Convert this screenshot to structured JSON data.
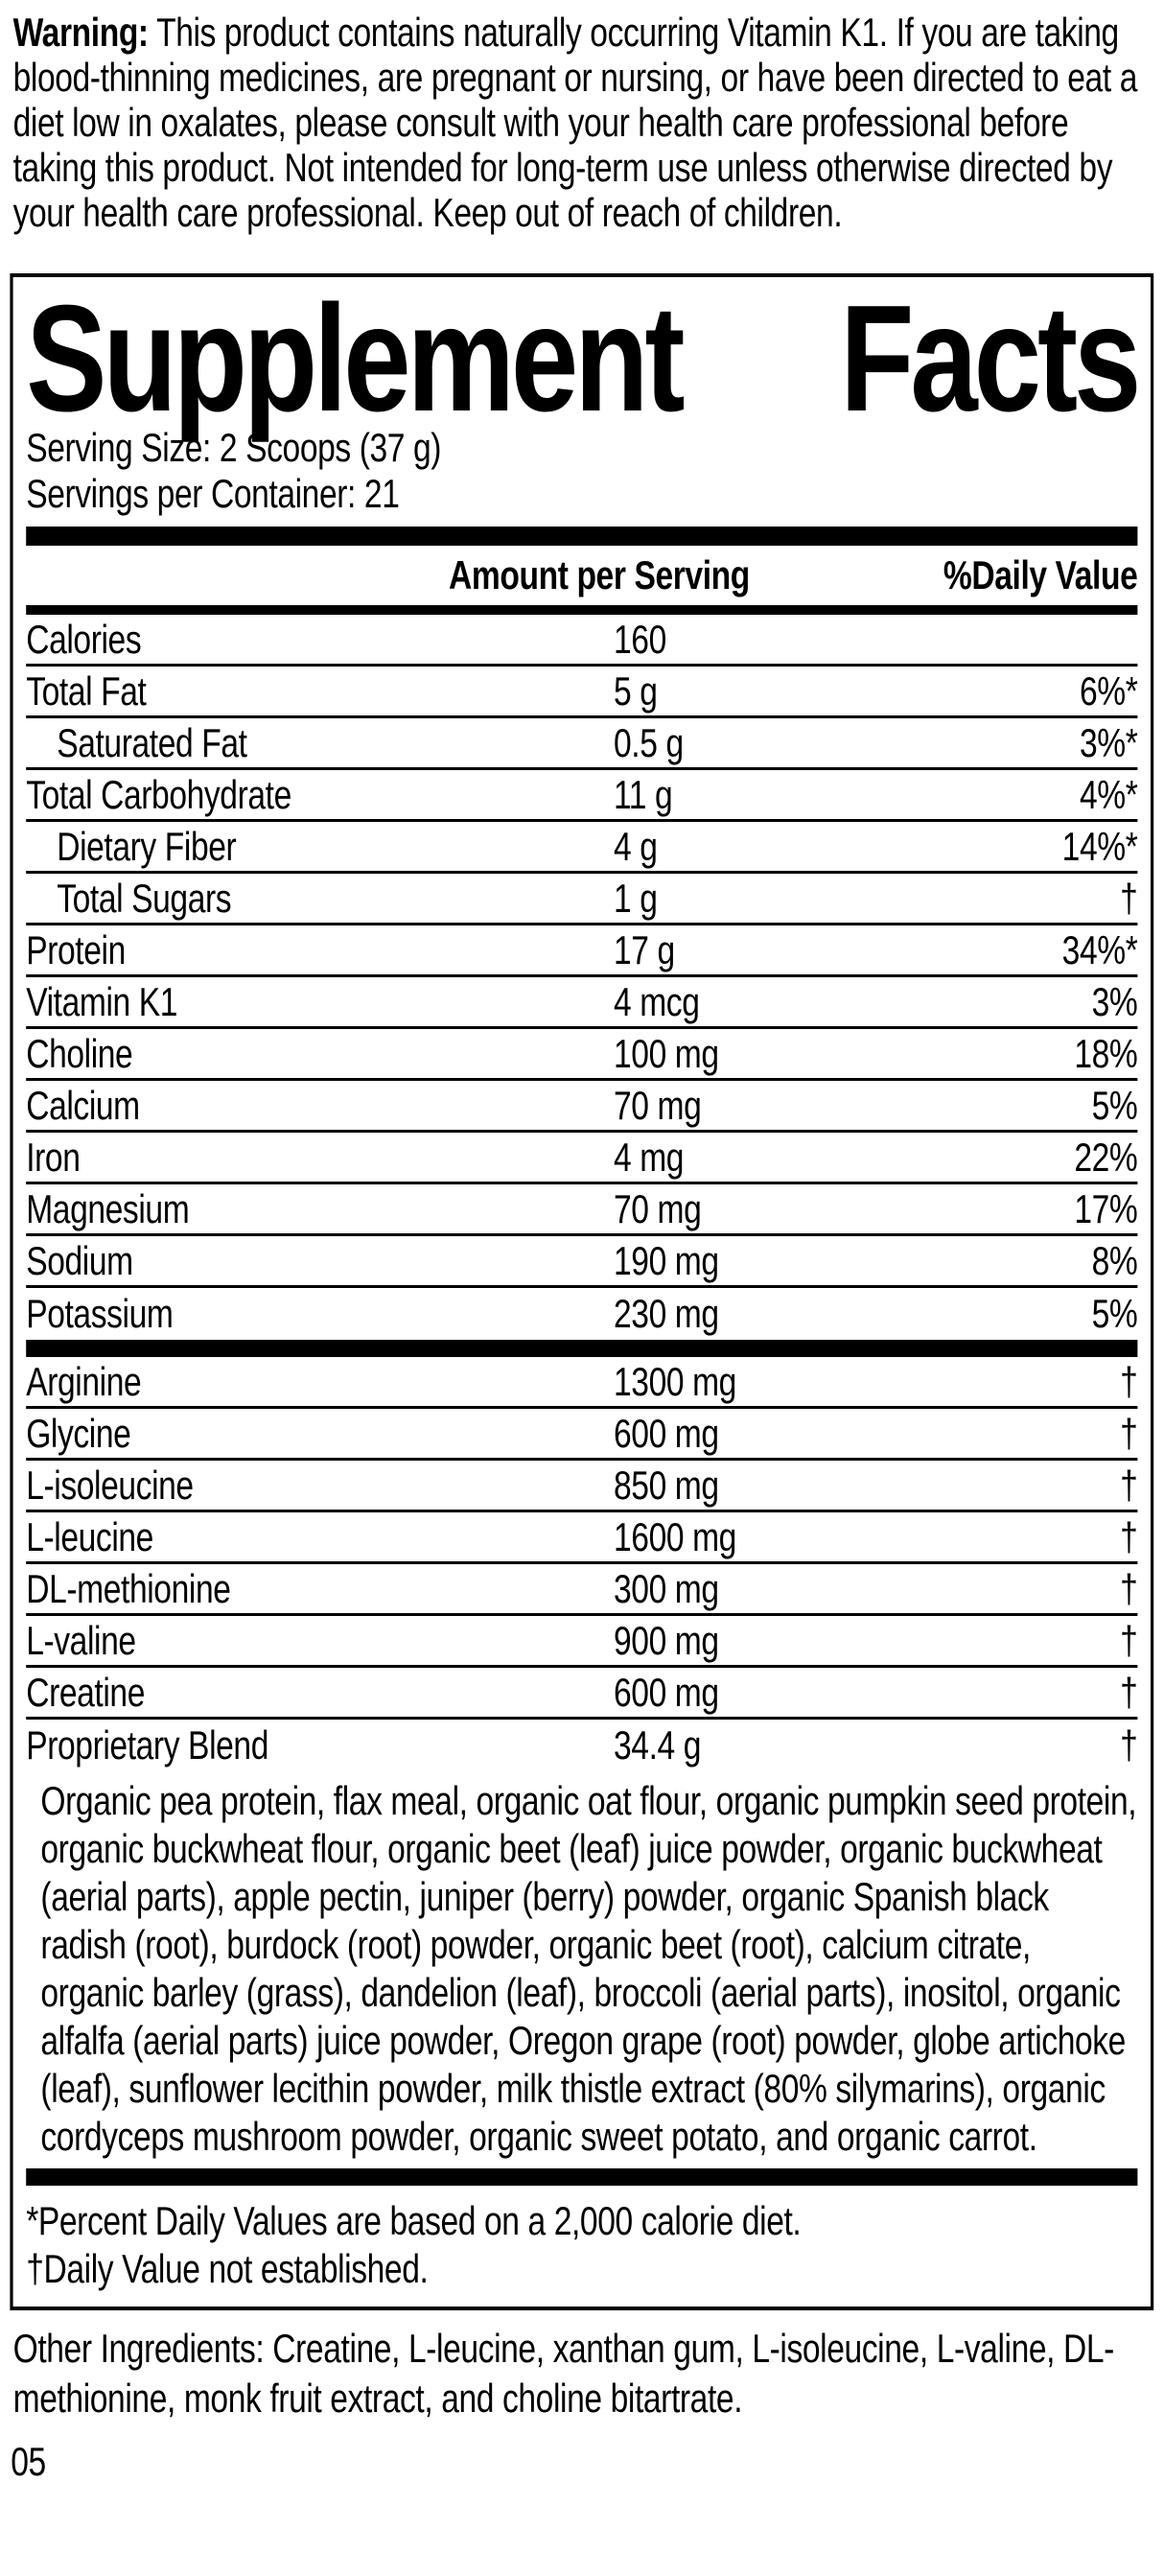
{
  "warning": {
    "label": "Warning:",
    "text": "This product contains naturally occurring Vitamin K1. If you are taking blood-thinning medicines, are pregnant or nursing, or have been directed to eat a diet low in oxalates, please consult with your health care professional before taking this product. Not intended for long-term use unless otherwise directed by your health care professional. Keep out of reach of children."
  },
  "panel": {
    "title_words": [
      "Supplement",
      "Facts"
    ],
    "serving_size": "Serving Size: 2 Scoops (37 g)",
    "servings_per_container": "Servings per Container: 21",
    "columns": {
      "amount": "Amount per Serving",
      "daily_value": "%Daily Value"
    },
    "nutrients": [
      {
        "name": "Calories",
        "amount": "160",
        "dv": "",
        "indent": false
      },
      {
        "name": "Total Fat",
        "amount": "5 g",
        "dv": "6%*",
        "indent": false
      },
      {
        "name": "Saturated Fat",
        "amount": "0.5 g",
        "dv": "3%*",
        "indent": true
      },
      {
        "name": "Total Carbohydrate",
        "amount": "11 g",
        "dv": "4%*",
        "indent": false
      },
      {
        "name": "Dietary Fiber",
        "amount": "4 g",
        "dv": "14%*",
        "indent": true
      },
      {
        "name": "Total Sugars",
        "amount": "1 g",
        "dv": "†",
        "indent": true
      },
      {
        "name": "Protein",
        "amount": "17 g",
        "dv": "34%*",
        "indent": false
      },
      {
        "name": "Vitamin K1",
        "amount": "4 mcg",
        "dv": "3%",
        "indent": false
      },
      {
        "name": "Choline",
        "amount": "100 mg",
        "dv": "18%",
        "indent": false
      },
      {
        "name": "Calcium",
        "amount": "70 mg",
        "dv": "5%",
        "indent": false
      },
      {
        "name": "Iron",
        "amount": "4 mg",
        "dv": "22%",
        "indent": false
      },
      {
        "name": "Magnesium",
        "amount": "70 mg",
        "dv": "17%",
        "indent": false
      },
      {
        "name": "Sodium",
        "amount": "190 mg",
        "dv": "8%",
        "indent": false
      },
      {
        "name": "Potassium",
        "amount": "230 mg",
        "dv": "5%",
        "indent": false
      }
    ],
    "amino_rows": [
      {
        "name": "Arginine",
        "amount": "1300 mg",
        "dv": "†",
        "indent": false
      },
      {
        "name": "Glycine",
        "amount": "600 mg",
        "dv": "†",
        "indent": false
      },
      {
        "name": "L-isoleucine",
        "amount": "850 mg",
        "dv": "†",
        "indent": false
      },
      {
        "name": "L-leucine",
        "amount": "1600 mg",
        "dv": "†",
        "indent": false
      },
      {
        "name": "DL-methionine",
        "amount": "300 mg",
        "dv": "†",
        "indent": false
      },
      {
        "name": "L-valine",
        "amount": "900 mg",
        "dv": "†",
        "indent": false
      },
      {
        "name": "Creatine",
        "amount": "600 mg",
        "dv": "†",
        "indent": false
      },
      {
        "name": "Proprietary Blend",
        "amount": "34.4 g",
        "dv": "†",
        "indent": false
      }
    ],
    "blend_description": "Organic pea protein, flax meal, organic oat flour, organic pumpkin seed protein, organic buckwheat flour, organic beet (leaf) juice powder, organic buckwheat (aerial parts), apple pectin, juniper (berry) powder, organic Spanish black radish (root), burdock (root) powder, organic beet (root), calcium citrate, organic barley (grass), dandelion (leaf), broccoli (aerial parts), inositol, organic alfalfa (aerial parts) juice powder, Oregon grape (root) powder, globe artichoke (leaf), sunflower lecithin powder, milk thistle extract (80% silymarins), organic cordyceps mushroom powder, organic sweet potato, and organic carrot.",
    "footnotes": [
      "*Percent Daily Values are based on a 2,000 calorie diet.",
      "†Daily Value not established."
    ]
  },
  "other_ingredients": "Other Ingredients: Creatine, L-leucine, xanthan gum, L-isoleucine, L-valine, DL-methionine, monk fruit extract, and choline bitartrate.",
  "page_number": "05",
  "colors": {
    "ink": "#000000",
    "paper": "#ffffff"
  }
}
